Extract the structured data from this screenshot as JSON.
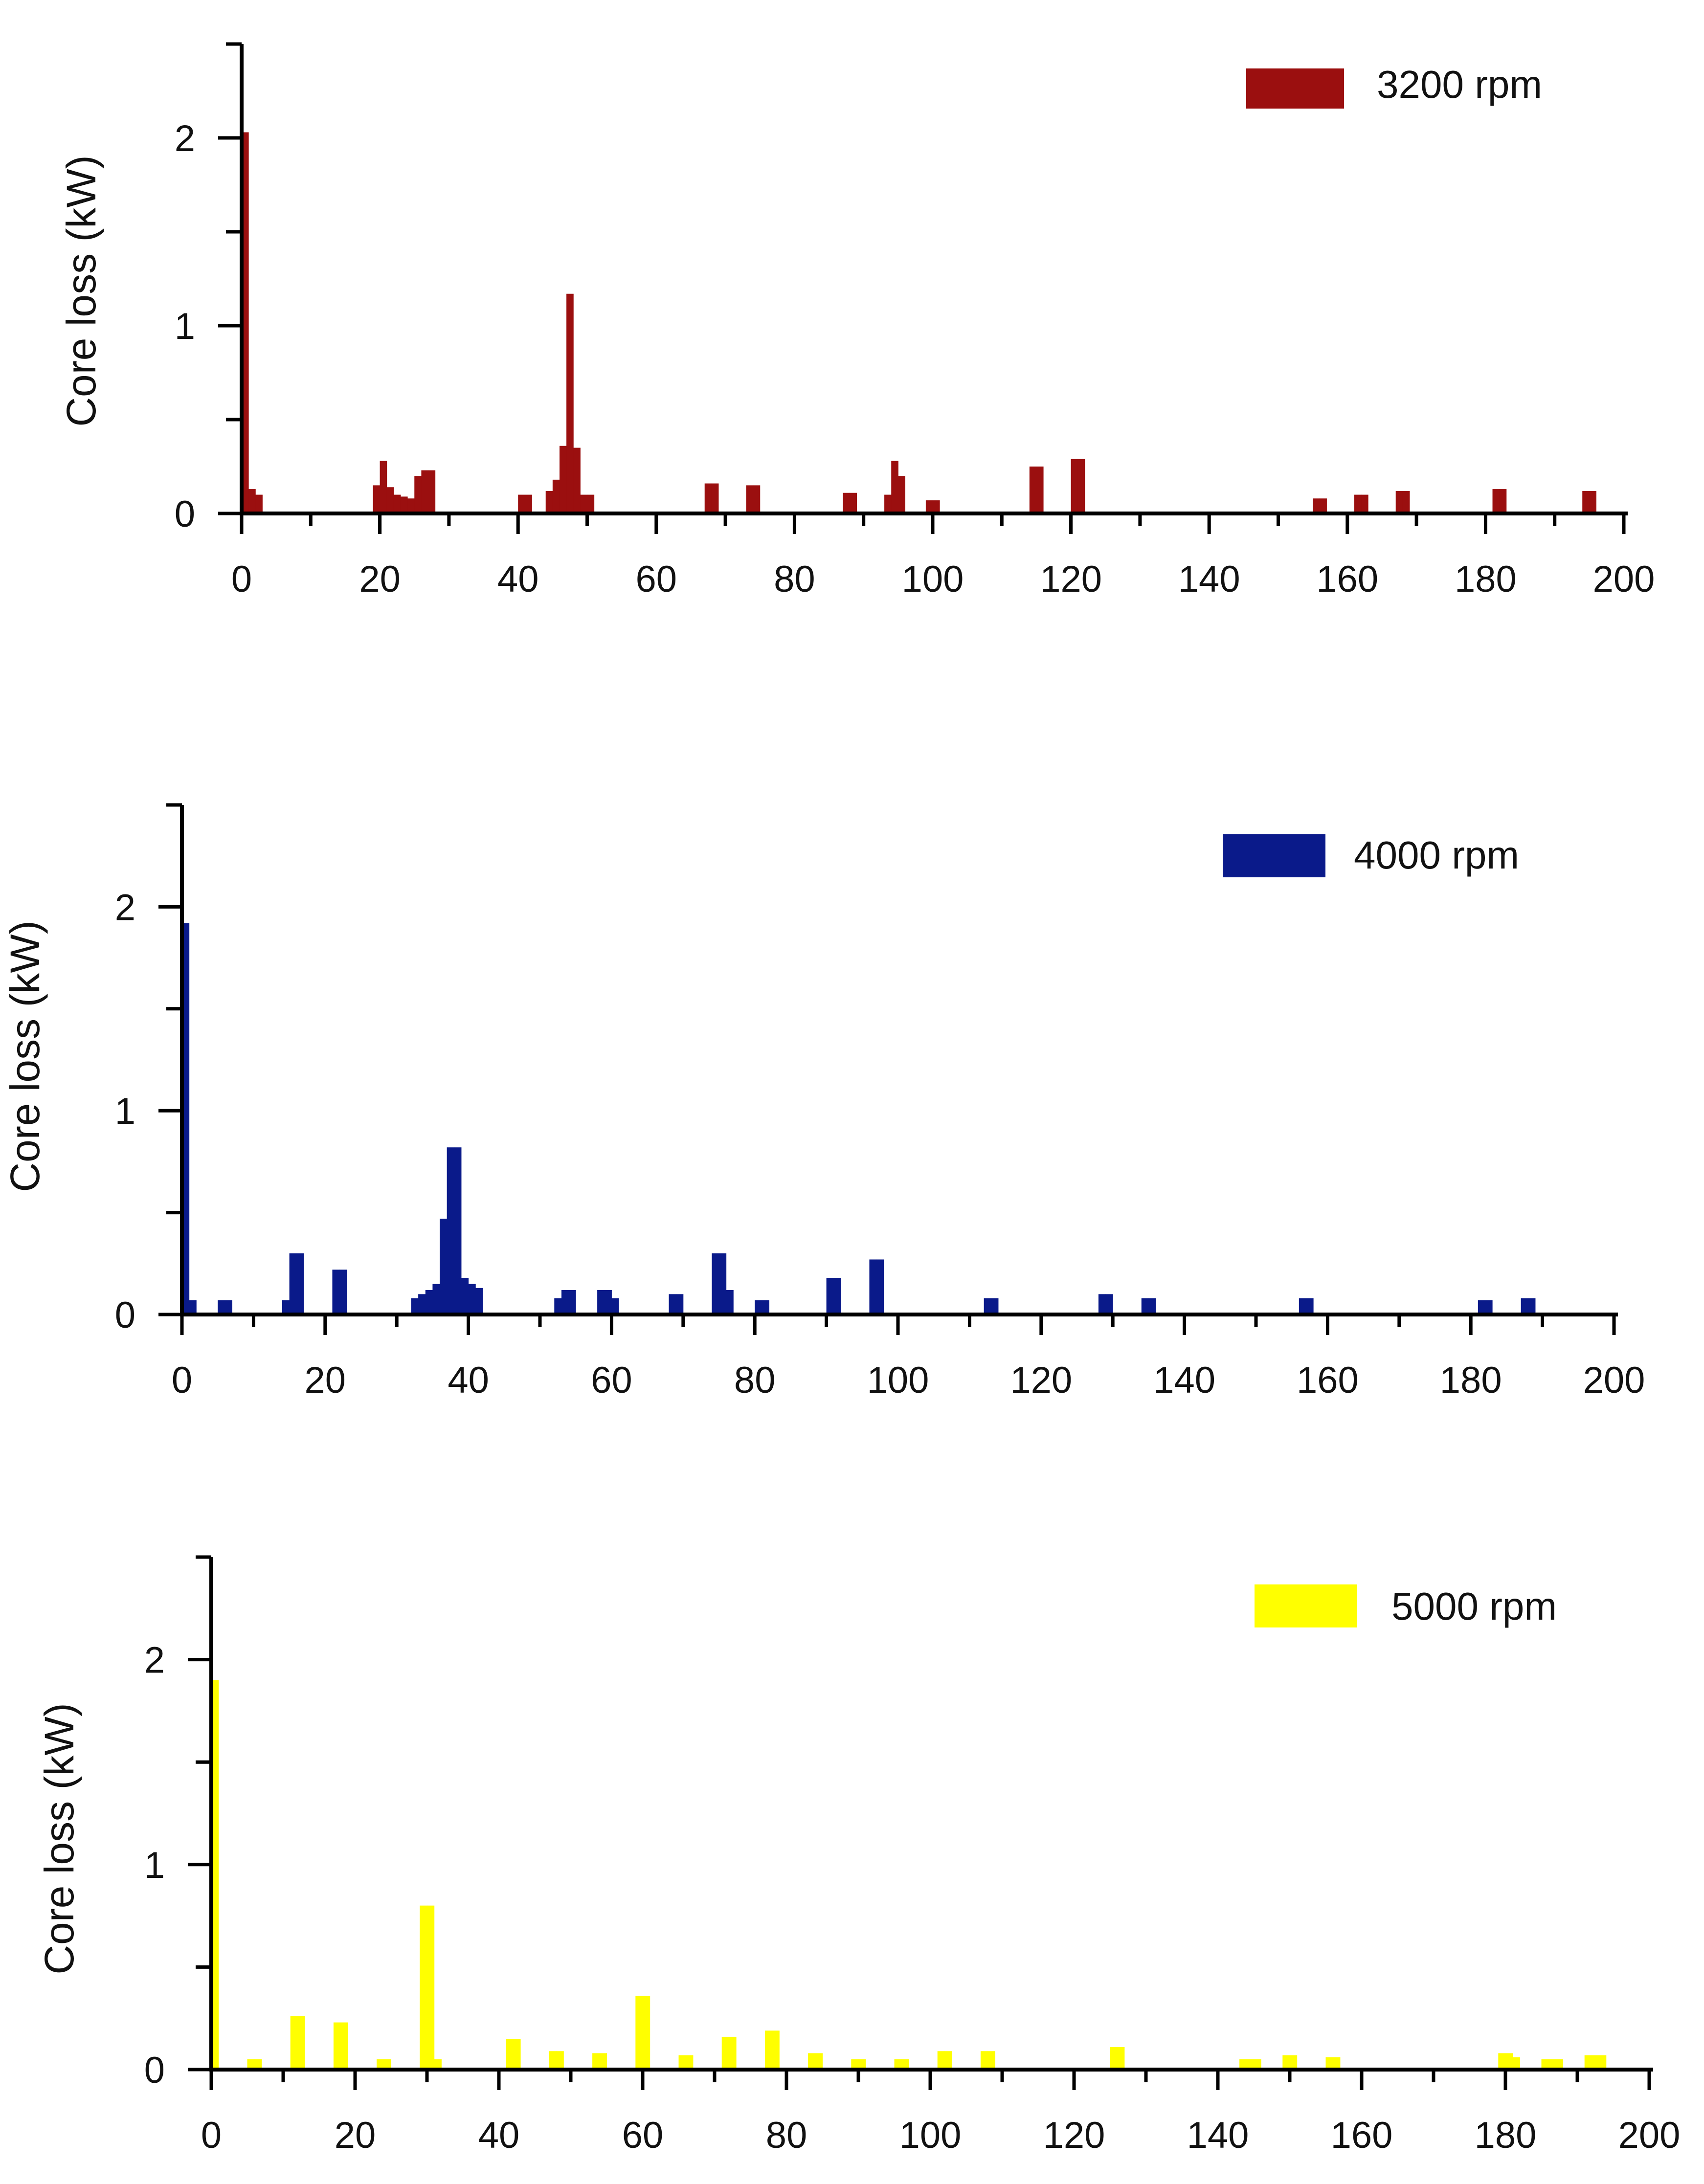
{
  "chart_data": [
    {
      "type": "bar",
      "title": "",
      "xlabel": "",
      "ylabel": "Core loss  (kW)",
      "xlim": [
        0,
        200
      ],
      "ylim": [
        0,
        2.5
      ],
      "xticks": [
        0,
        20,
        40,
        60,
        80,
        100,
        120,
        140,
        160,
        180,
        200
      ],
      "yticks": [
        0,
        1,
        2
      ],
      "x_tick_labels": [
        "0",
        "20",
        "40",
        "60",
        "80",
        "100",
        "120",
        "140",
        "160",
        "180",
        "200"
      ],
      "y_tick_labels": [
        "0",
        "1",
        "2"
      ],
      "grid": false,
      "legend_position": "top-right",
      "series": [
        {
          "name": "3200 rpm",
          "color": "#9b0f0f",
          "x": [
            0,
            1,
            2,
            19,
            20,
            21,
            22,
            23,
            24,
            25,
            26,
            27,
            40,
            41,
            44,
            45,
            46,
            47,
            48,
            49,
            50,
            67,
            68,
            73,
            74,
            87,
            88,
            93,
            94,
            95,
            99,
            100,
            114,
            115,
            120,
            121,
            155,
            156,
            161,
            162,
            167,
            168,
            181,
            182,
            194,
            195
          ],
          "values": [
            2.03,
            0.13,
            0.1,
            0.15,
            0.28,
            0.14,
            0.1,
            0.09,
            0.08,
            0.2,
            0.23,
            0.23,
            0.1,
            0.1,
            0.12,
            0.18,
            0.36,
            1.17,
            0.35,
            0.1,
            0.1,
            0.16,
            0.16,
            0.15,
            0.15,
            0.11,
            0.11,
            0.1,
            0.28,
            0.2,
            0.07,
            0.07,
            0.25,
            0.25,
            0.29,
            0.29,
            0.08,
            0.08,
            0.1,
            0.1,
            0.12,
            0.12,
            0.13,
            0.13,
            0.12,
            0.12
          ]
        }
      ]
    },
    {
      "type": "bar",
      "title": "",
      "xlabel": "",
      "ylabel": "Core loss  (kW)",
      "xlim": [
        0,
        200
      ],
      "ylim": [
        0,
        2.5
      ],
      "xticks": [
        0,
        20,
        40,
        60,
        80,
        100,
        120,
        140,
        160,
        180,
        200
      ],
      "yticks": [
        0,
        1,
        2
      ],
      "x_tick_labels": [
        "0",
        "20",
        "40",
        "60",
        "80",
        "100",
        "120",
        "140",
        "160",
        "180",
        "200"
      ],
      "y_tick_labels": [
        "0",
        "1",
        "2"
      ],
      "grid": false,
      "legend_position": "top-right",
      "series": [
        {
          "name": "4000 rpm",
          "color": "#0a1a8a",
          "x": [
            0,
            1,
            5,
            6,
            14,
            15,
            16,
            21,
            22,
            32,
            33,
            34,
            35,
            36,
            37,
            38,
            39,
            40,
            41,
            52,
            53,
            54,
            58,
            59,
            60,
            68,
            69,
            74,
            75,
            76,
            80,
            81,
            90,
            91,
            96,
            97,
            112,
            113,
            128,
            129,
            134,
            135,
            156,
            157,
            181,
            182,
            187,
            188
          ],
          "values": [
            1.92,
            0.07,
            0.07,
            0.07,
            0.07,
            0.3,
            0.3,
            0.22,
            0.22,
            0.08,
            0.1,
            0.12,
            0.15,
            0.47,
            0.82,
            0.82,
            0.18,
            0.15,
            0.13,
            0.08,
            0.12,
            0.12,
            0.12,
            0.12,
            0.08,
            0.1,
            0.1,
            0.3,
            0.3,
            0.12,
            0.07,
            0.07,
            0.18,
            0.18,
            0.27,
            0.27,
            0.08,
            0.08,
            0.1,
            0.1,
            0.08,
            0.08,
            0.08,
            0.08,
            0.07,
            0.07,
            0.08,
            0.08
          ]
        }
      ]
    },
    {
      "type": "bar",
      "title": "",
      "xlabel": "",
      "ylabel": "Core loss  (kW)",
      "xlim": [
        0,
        200
      ],
      "ylim": [
        0,
        2.5
      ],
      "xticks": [
        0,
        20,
        40,
        60,
        80,
        100,
        120,
        140,
        160,
        180,
        200
      ],
      "yticks": [
        0,
        1,
        2
      ],
      "x_tick_labels": [
        "0",
        "20",
        "40",
        "60",
        "80",
        "100",
        "120",
        "140",
        "160",
        "180",
        "200"
      ],
      "y_tick_labels": [
        "0",
        "1",
        "2"
      ],
      "grid": false,
      "legend_position": "top-right",
      "series": [
        {
          "name": "5000 rpm",
          "color": "#ffff00",
          "x": [
            0,
            5,
            6,
            11,
            12,
            17,
            18,
            23,
            24,
            29,
            30,
            31,
            41,
            42,
            47,
            48,
            53,
            54,
            59,
            60,
            65,
            66,
            71,
            72,
            77,
            78,
            83,
            84,
            89,
            90,
            95,
            96,
            101,
            102,
            107,
            108,
            125,
            126,
            143,
            144,
            145,
            149,
            150,
            155,
            156,
            179,
            180,
            181,
            185,
            186,
            187,
            191,
            192,
            193
          ],
          "values": [
            1.9,
            0.05,
            0.05,
            0.26,
            0.26,
            0.23,
            0.23,
            0.05,
            0.05,
            0.8,
            0.8,
            0.05,
            0.15,
            0.15,
            0.09,
            0.09,
            0.08,
            0.08,
            0.36,
            0.36,
            0.07,
            0.07,
            0.16,
            0.16,
            0.19,
            0.19,
            0.08,
            0.08,
            0.05,
            0.05,
            0.05,
            0.05,
            0.09,
            0.09,
            0.09,
            0.09,
            0.11,
            0.11,
            0.05,
            0.05,
            0.05,
            0.07,
            0.07,
            0.06,
            0.06,
            0.08,
            0.08,
            0.06,
            0.05,
            0.05,
            0.05,
            0.07,
            0.07,
            0.07
          ]
        }
      ]
    }
  ]
}
